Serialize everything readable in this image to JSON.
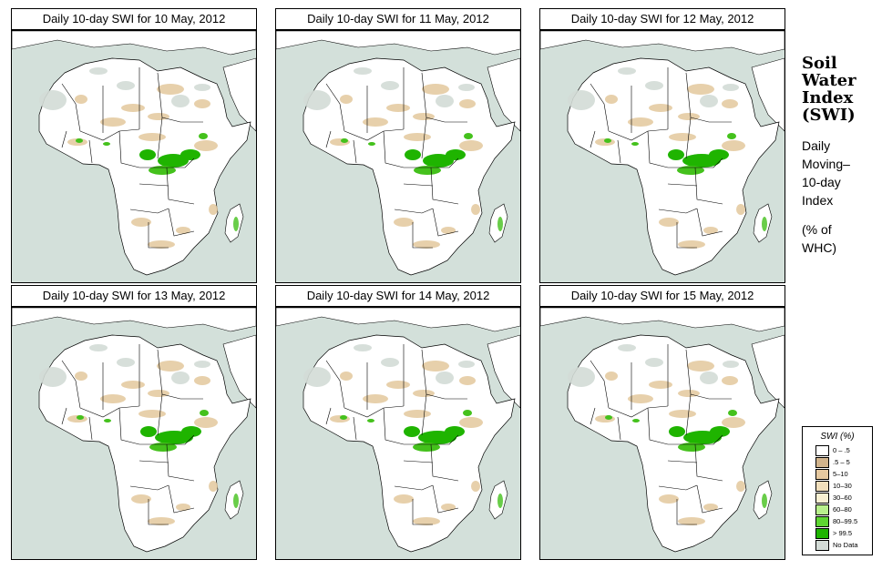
{
  "panels": [
    {
      "title": "Daily 10-day SWI for  10 May, 2012"
    },
    {
      "title": "Daily 10-day SWI for  11 May, 2012"
    },
    {
      "title": "Daily 10-day SWI for  12 May, 2012"
    },
    {
      "title": "Daily 10-day SWI for  13 May, 2012"
    },
    {
      "title": "Daily 10-day SWI for  14 May, 2012"
    },
    {
      "title": "Daily 10-day SWI for  15 May, 2012"
    }
  ],
  "side": {
    "title_lines": [
      "Soil",
      "Water",
      "Index",
      "(SWI)"
    ],
    "subtitle_lines": [
      "Daily",
      "Moving–",
      "10-day",
      "Index"
    ],
    "unit_lines": [
      "(% of",
      " WHC)"
    ]
  },
  "legend": {
    "title": "SWI (%)",
    "items": [
      {
        "label": "0 – .5",
        "color": "#ffffff"
      },
      {
        "label": ".5 – 5",
        "color": "#d2b48c"
      },
      {
        "label": "5–10",
        "color": "#e6c9a0"
      },
      {
        "label": "10–30",
        "color": "#f1dfbc"
      },
      {
        "label": "30–60",
        "color": "#f8f0d2"
      },
      {
        "label": "60–80",
        "color": "#b8f08c"
      },
      {
        "label": "80–99.5",
        "color": "#5ed632"
      },
      {
        "label": "> 99.5",
        "color": "#1fb400"
      },
      {
        "label": "No Data",
        "color": "#d3dbd6"
      }
    ]
  },
  "colors": {
    "ocean": "#d3e0da",
    "land": "#ffffff",
    "dry": "#e3c89c",
    "wet": "#44c11c",
    "very_wet": "#1fb400",
    "nodata": "#d3dbd6"
  }
}
